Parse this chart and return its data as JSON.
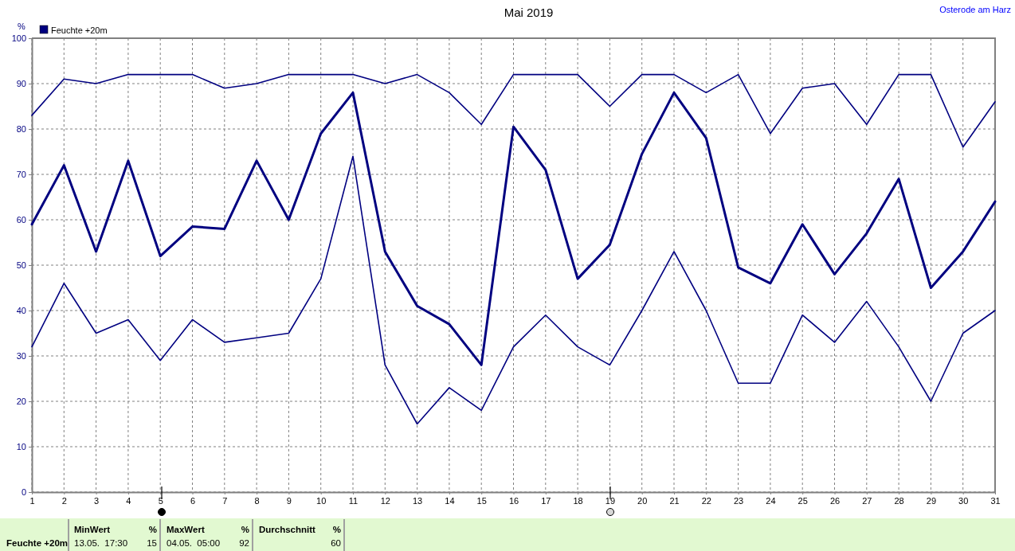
{
  "chart_data": {
    "type": "line",
    "title": "Mai 2019",
    "subtitle": "Osterode am Harz",
    "ylabel": "%",
    "x": [
      1,
      2,
      3,
      4,
      5,
      6,
      7,
      8,
      9,
      10,
      11,
      12,
      13,
      14,
      15,
      16,
      17,
      18,
      19,
      20,
      21,
      22,
      23,
      24,
      25,
      26,
      27,
      28,
      29,
      30,
      31
    ],
    "series": [
      {
        "color": "#000080",
        "values": [
          83,
          91,
          90,
          92,
          92,
          92,
          89,
          90,
          92,
          92,
          92,
          90,
          92,
          88,
          81,
          92,
          92,
          92,
          85,
          92,
          92,
          88,
          92,
          79,
          89,
          90,
          81,
          92,
          92,
          76,
          86
        ]
      },
      {
        "name": "Feuchte +20m",
        "color": "#000080",
        "values": [
          59,
          72,
          53,
          73,
          52,
          58.5,
          58,
          73,
          60,
          79,
          88,
          53,
          41,
          37,
          28,
          80.5,
          71,
          47,
          54.5,
          74.5,
          88,
          78,
          49.5,
          46,
          59,
          48,
          57,
          69,
          45,
          53,
          64
        ]
      },
      {
        "color": "#000080",
        "values": [
          32,
          46,
          35,
          38,
          29,
          38,
          33,
          34,
          35,
          47,
          74,
          28,
          15,
          23,
          18,
          32,
          39,
          32,
          28,
          40,
          53,
          40,
          24,
          24,
          39,
          33,
          42,
          32,
          20,
          35,
          40
        ]
      }
    ],
    "xlim": [
      1,
      31
    ],
    "xticks": [
      1,
      2,
      3,
      4,
      5,
      6,
      7,
      8,
      9,
      10,
      11,
      12,
      13,
      14,
      15,
      16,
      17,
      18,
      19,
      20,
      21,
      22,
      23,
      24,
      25,
      26,
      27,
      28,
      29,
      30,
      31
    ],
    "ylim": [
      0,
      100
    ],
    "yticks": [
      0,
      10,
      20,
      30,
      40,
      50,
      60,
      70,
      80,
      90,
      100
    ],
    "grid": true,
    "legend": "top left",
    "annotations": [
      "Feuchte +20m",
      "MinWert",
      "%",
      "13.05.  17:30",
      "15",
      "MaxWert",
      "%",
      "04.05.  05:00",
      "92",
      "Durchschnitt",
      "%",
      "60"
    ]
  }
}
